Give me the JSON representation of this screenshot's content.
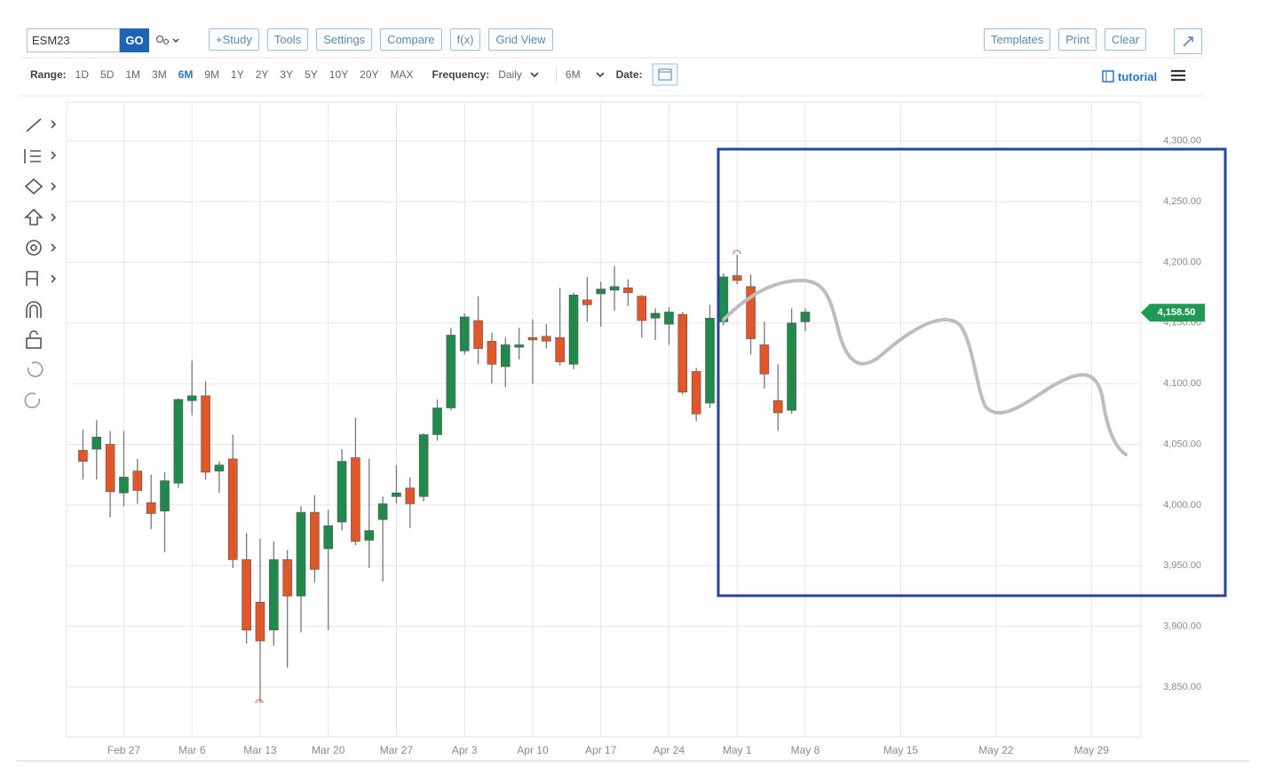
{
  "toolbar": {
    "symbol": "ESM23",
    "go": "GO",
    "buttons": [
      "+Study",
      "Tools",
      "Settings",
      "Compare",
      "f(x)",
      "Grid View"
    ],
    "right_buttons": [
      "Templates",
      "Print",
      "Clear"
    ]
  },
  "range_bar": {
    "label": "Range:",
    "ranges": [
      "1D",
      "5D",
      "1M",
      "3M",
      "6M",
      "9M",
      "1Y",
      "2Y",
      "3Y",
      "5Y",
      "10Y",
      "20Y",
      "MAX"
    ],
    "active_range": "6M",
    "frequency_label": "Frequency:",
    "frequency": "Daily",
    "period": "6M",
    "date_label": "Date:",
    "tutorial": "tutorial"
  },
  "chart_data": {
    "type": "candlestick",
    "categories": [
      null,
      null,
      null,
      "Feb 27",
      null,
      null,
      null,
      null,
      "Mar 6",
      null,
      null,
      null,
      null,
      "Mar 13",
      null,
      null,
      null,
      null,
      "Mar 20",
      null,
      null,
      null,
      null,
      "Mar 27",
      null,
      null,
      null,
      null,
      "Apr 3",
      null,
      null,
      null,
      null,
      "Apr 10",
      null,
      null,
      null,
      null,
      "Apr 17",
      null,
      null,
      null,
      null,
      "Apr 24",
      null,
      null,
      null,
      null,
      "May 1",
      null,
      null,
      null,
      null,
      "May 8",
      null,
      null,
      null,
      null,
      null,
      null,
      "May 15",
      null,
      null,
      null,
      null,
      null,
      null,
      "May 22",
      null,
      null,
      null,
      null,
      null,
      null,
      "May 29",
      null,
      null,
      null
    ],
    "open": [
      4045,
      4046,
      4050,
      4010,
      4028,
      4002,
      3995,
      4018,
      4086,
      4090,
      4028,
      4038,
      3955,
      3920,
      3897,
      3955,
      3925,
      3994,
      3964,
      3986,
      4039,
      3971,
      3988,
      4007,
      4014,
      4007,
      4058,
      4080,
      4127,
      4152,
      4135,
      4114,
      4130,
      4138,
      4139,
      4138,
      4116,
      4169,
      4174,
      4177,
      4179,
      4172,
      4154,
      4149,
      4157,
      4110,
      4084,
      4151,
      4189,
      4180,
      4132,
      4086,
      4078,
      4151,
      null,
      null,
      null,
      null,
      null,
      null,
      null,
      null,
      null,
      null,
      null,
      null,
      null,
      null,
      null,
      null,
      null,
      null,
      null,
      null,
      null,
      null,
      null,
      null
    ],
    "high": [
      4062,
      4070,
      4061,
      4061,
      4038,
      4025,
      4027,
      4088,
      4119,
      4102,
      4036,
      4058,
      3977,
      3972,
      3970,
      3963,
      3999,
      4008,
      3996,
      4046,
      4072,
      4038,
      4007,
      4033,
      4023,
      4059,
      4087,
      4146,
      4158,
      4172,
      4142,
      4138,
      4146,
      4153,
      4149,
      4179,
      4175,
      4188,
      4184,
      4197,
      4186,
      4173,
      4162,
      4163,
      4159,
      4113,
      4165,
      4191,
      4206,
      4190,
      4151,
      4116,
      4162,
      4162,
      null,
      null,
      null,
      null,
      null,
      null,
      null,
      null,
      null,
      null,
      null,
      null,
      null,
      null,
      null,
      null,
      null,
      null,
      null,
      null,
      null,
      null,
      null,
      null
    ],
    "low": [
      4021,
      4021,
      3990,
      3999,
      4001,
      3980,
      3961,
      4014,
      4074,
      4021,
      4010,
      3948,
      3886,
      3837,
      3884,
      3866,
      3895,
      3936,
      3897,
      3979,
      3967,
      3948,
      3937,
      4001,
      3981,
      4003,
      4053,
      4078,
      4124,
      4116,
      4100,
      4097,
      4120,
      4100,
      4129,
      4115,
      4112,
      4151,
      4147,
      4160,
      4164,
      4138,
      4136,
      4132,
      4091,
      4069,
      4080,
      4148,
      4182,
      4124,
      4096,
      4061,
      4075,
      4143,
      null,
      null,
      null,
      null,
      null,
      null,
      null,
      null,
      null,
      null,
      null,
      null,
      null,
      null,
      null,
      null,
      null,
      null,
      null,
      null,
      null,
      null,
      null,
      null
    ],
    "close": [
      4036,
      4056,
      4011,
      4023,
      4012,
      3993,
      4020,
      4087,
      4090,
      4027,
      4033,
      3955,
      3897,
      3888,
      3955,
      3925,
      3994,
      3947,
      3983,
      4036,
      3970,
      3979,
      4001,
      4010,
      4001,
      4058,
      4080,
      4140,
      4155,
      4129,
      4116,
      4132,
      4132,
      4136,
      4135,
      4118,
      4173,
      4165,
      4178,
      4180,
      4175,
      4152,
      4158,
      4159,
      4093,
      4075,
      4154,
      4188,
      4185,
      4137,
      4108,
      4076,
      4150,
      4159,
      null,
      null,
      null,
      null,
      null,
      null,
      null,
      null,
      null,
      null,
      null,
      null,
      null,
      null,
      null,
      null,
      null,
      null,
      null,
      null,
      null,
      null,
      null,
      null
    ],
    "up_color": "#1f8a4c",
    "down_color": "#e1572a",
    "ylim": [
      3809,
      4332
    ],
    "yticks": [
      {
        "value": 3850,
        "label": "3,850.00"
      },
      {
        "value": 3900,
        "label": "3,900.00"
      },
      {
        "value": 3950,
        "label": "3,950.00"
      },
      {
        "value": 4000,
        "label": "4,000.00"
      },
      {
        "value": 4050,
        "label": "4,050.00"
      },
      {
        "value": 4100,
        "label": "4,100.00"
      },
      {
        "value": 4150,
        "label": "4,150.00"
      },
      {
        "value": 4200,
        "label": "4,200.00"
      },
      {
        "value": 4250,
        "label": "4,250.00"
      },
      {
        "value": 4300,
        "label": "4,300.00"
      }
    ],
    "last_price": 4158.5,
    "last_price_label": "4,158.50",
    "last_price_color": "#1f9a55",
    "grid": true
  }
}
